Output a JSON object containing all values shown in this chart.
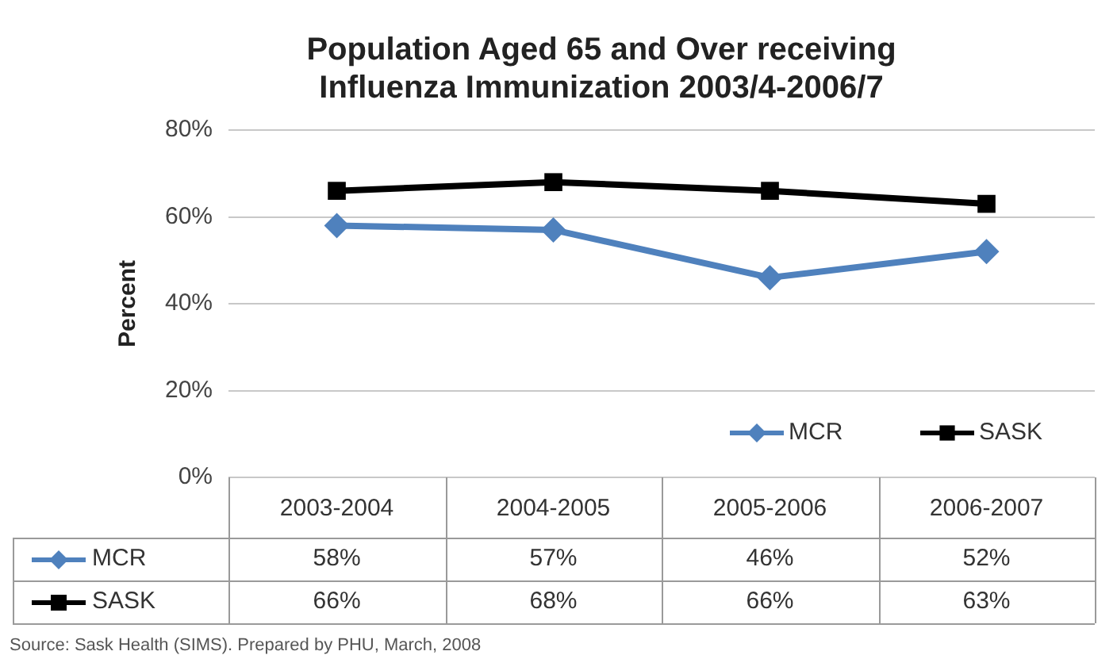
{
  "chart_data": {
    "type": "line",
    "title": "Population Aged 65 and Over receiving Influenza Immunization 2003/4-2006/7",
    "ylabel": "Percent",
    "categories": [
      "2003-2004",
      "2004-2005",
      "2005-2006",
      "2006-2007"
    ],
    "series": [
      {
        "name": "MCR",
        "color": "#4f81bd",
        "marker": "diamond",
        "values": [
          58,
          57,
          46,
          52
        ],
        "value_labels": [
          "58%",
          "57%",
          "46%",
          "52%"
        ]
      },
      {
        "name": "SASK",
        "color": "#000000",
        "marker": "square",
        "values": [
          66,
          68,
          66,
          63
        ],
        "value_labels": [
          "66%",
          "68%",
          "66%",
          "63%"
        ]
      }
    ],
    "ylim": [
      0,
      80
    ],
    "yticks": [
      {
        "value": 0,
        "label": "0%"
      },
      {
        "value": 20,
        "label": "20%"
      },
      {
        "value": 40,
        "label": "40%"
      },
      {
        "value": 60,
        "label": "60%"
      },
      {
        "value": 80,
        "label": "80%"
      }
    ],
    "grid": "y",
    "legend": "bottom right",
    "line_style": "solid",
    "annotations": [
      "Source: Sask Health (SIMS). Prepared by PHU, March, 2008"
    ]
  }
}
